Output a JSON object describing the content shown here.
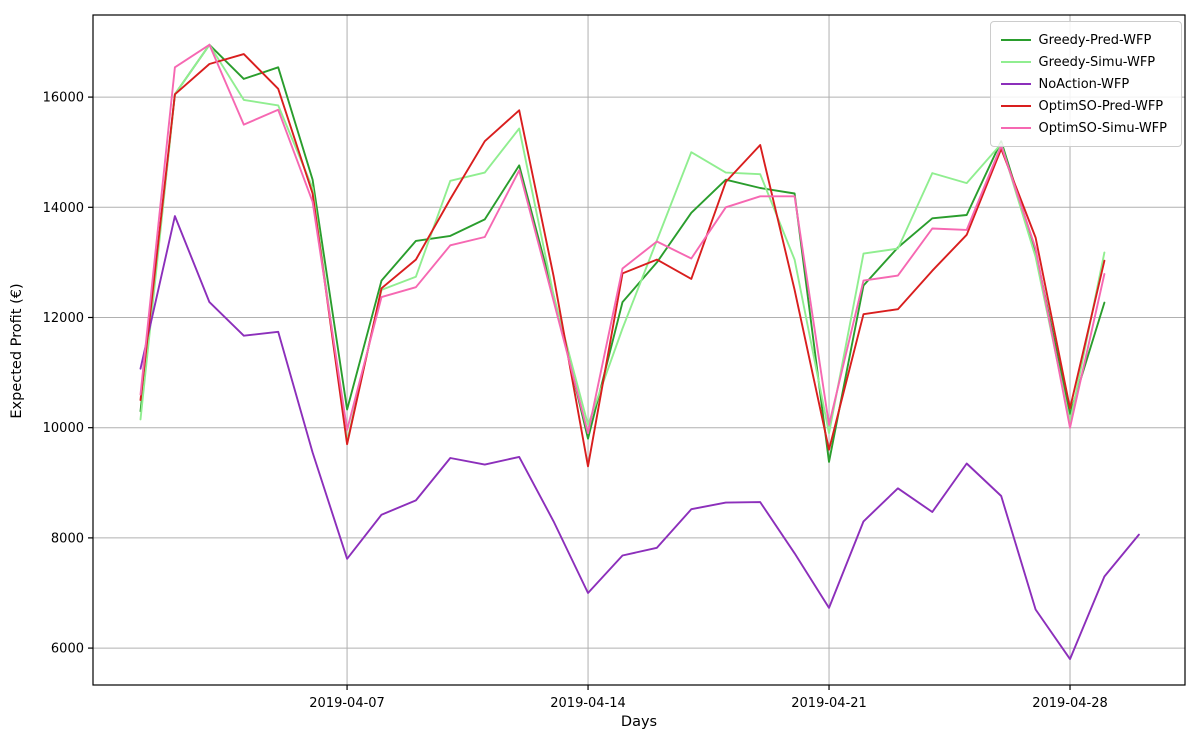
{
  "figure": {
    "xlabel": "Days",
    "ylabel": "Expected Profit (€)",
    "background": "#ffffff",
    "plot_border_color": "#000000",
    "grid_color": "#b0b0b0"
  },
  "chart_data": {
    "type": "line",
    "title": "",
    "xlabel": "Days",
    "ylabel": "Expected Profit (€)",
    "grid": true,
    "legend_position": "upper right",
    "x_days": [
      1,
      2,
      3,
      4,
      5,
      6,
      7,
      8,
      9,
      10,
      11,
      12,
      13,
      14,
      15,
      16,
      17,
      18,
      19,
      20,
      21,
      22,
      23,
      24,
      25,
      26,
      27,
      28,
      29,
      30
    ],
    "x_month": "2019-04",
    "x_tick_labels": [
      "2019-04-07",
      "2019-04-14",
      "2019-04-21",
      "2019-04-28"
    ],
    "x_tick_days": [
      7,
      14,
      21,
      28
    ],
    "y_ticks": [
      6000,
      8000,
      10000,
      12000,
      14000,
      16000
    ],
    "ylim": [
      5330,
      17490
    ],
    "xlim_day_index": [
      -1.38,
      30.34
    ],
    "series": [
      {
        "name": "Greedy-Pred-WFP",
        "color": "#2a9d2d",
        "values": [
          10300,
          16050,
          16950,
          16330,
          16540,
          14500,
          10330,
          12670,
          13390,
          13480,
          13780,
          14760,
          12400,
          9800,
          12280,
          13000,
          13900,
          14500,
          14350,
          14250,
          9380,
          12580,
          13270,
          13800,
          13860,
          15200,
          13200,
          10250,
          12270,
          null
        ]
      },
      {
        "name": "Greedy-Simu-WFP",
        "color": "#90ee90",
        "values": [
          10150,
          16050,
          16950,
          15950,
          15850,
          14350,
          9750,
          12500,
          12740,
          14480,
          14630,
          15430,
          12400,
          10050,
          11800,
          13400,
          15000,
          14630,
          14600,
          13050,
          9900,
          13160,
          13250,
          14620,
          14440,
          15150,
          13100,
          10100,
          13180,
          null
        ]
      },
      {
        "name": "NoAction-WFP",
        "color": "#8c2fbb",
        "values": [
          11070,
          13840,
          12280,
          11670,
          11740,
          9550,
          7620,
          8420,
          8680,
          9450,
          9330,
          9470,
          8300,
          7000,
          7680,
          7820,
          8520,
          8640,
          8650,
          7720,
          6730,
          8300,
          8900,
          8470,
          9350,
          8760,
          6700,
          5800,
          7300,
          8060
        ]
      },
      {
        "name": "OptimSO-Pred-WFP",
        "color": "#d91e1e",
        "values": [
          10500,
          16050,
          16600,
          16780,
          16150,
          14250,
          9700,
          12530,
          13050,
          14150,
          15200,
          15760,
          12750,
          9300,
          12800,
          13050,
          12700,
          14460,
          15130,
          12500,
          9600,
          12060,
          12150,
          12850,
          13500,
          15060,
          13450,
          10350,
          13030,
          null
        ]
      },
      {
        "name": "OptimSO-Simu-WFP",
        "color": "#f668b2",
        "values": [
          10600,
          16540,
          16950,
          15500,
          15770,
          14100,
          9960,
          12370,
          12550,
          13310,
          13460,
          14670,
          12300,
          9900,
          12890,
          13380,
          13070,
          14000,
          14200,
          14200,
          10050,
          12670,
          12760,
          13615,
          13590,
          15120,
          13250,
          10000,
          12790,
          null
        ]
      }
    ]
  }
}
